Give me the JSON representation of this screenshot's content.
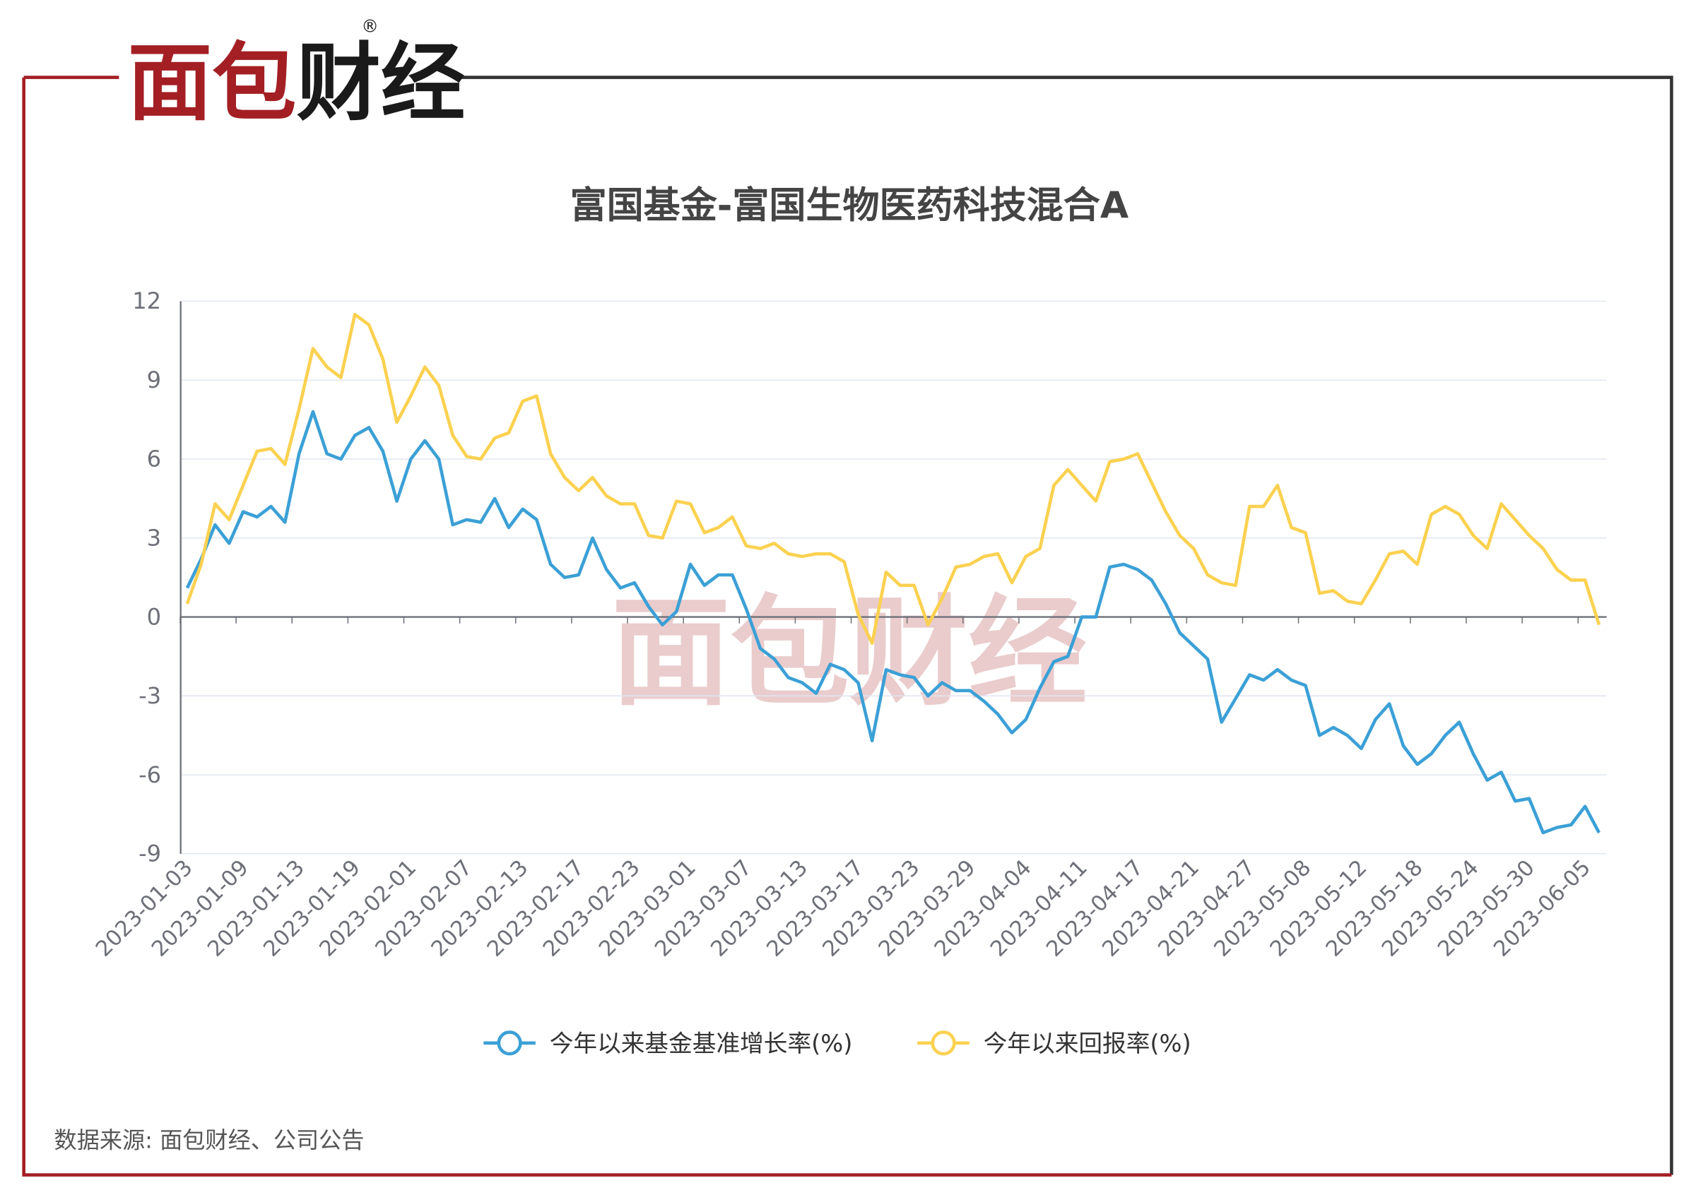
{
  "logo": [
    "面包",
    "财经"
  ],
  "logo_mark": "®",
  "watermark": "面包财经",
  "chart_data": {
    "type": "line",
    "title": "富国基金-富国生物医药科技混合A",
    "categories": [
      "2023-01-03",
      null,
      null,
      null,
      "2023-01-09",
      null,
      null,
      null,
      "2023-01-13",
      null,
      null,
      null,
      "2023-01-19",
      null,
      null,
      null,
      "2023-02-01",
      null,
      null,
      null,
      "2023-02-07",
      null,
      null,
      null,
      "2023-02-13",
      null,
      null,
      null,
      "2023-02-17",
      null,
      null,
      null,
      "2023-02-23",
      null,
      null,
      null,
      "2023-03-01",
      null,
      null,
      null,
      "2023-03-07",
      null,
      null,
      null,
      "2023-03-13",
      null,
      null,
      null,
      "2023-03-17",
      null,
      null,
      null,
      "2023-03-23",
      null,
      null,
      null,
      "2023-03-29",
      null,
      null,
      null,
      "2023-04-04",
      null,
      null,
      null,
      "2023-04-11",
      null,
      null,
      null,
      "2023-04-17",
      null,
      null,
      null,
      "2023-04-21",
      null,
      null,
      null,
      "2023-04-27",
      null,
      null,
      null,
      "2023-05-08",
      null,
      null,
      null,
      "2023-05-12",
      null,
      null,
      null,
      "2023-05-18",
      null,
      null,
      null,
      "2023-05-24",
      null,
      null,
      null,
      "2023-05-30",
      null,
      null,
      null,
      "2023-06-05",
      null
    ],
    "series": [
      {
        "name": "今年以来基金基准增长率(%)",
        "color": "#3ba0d6",
        "values": [
          1.1,
          2.2,
          3.5,
          2.8,
          4.0,
          3.8,
          4.2,
          3.6,
          6.2,
          7.8,
          6.2,
          6.0,
          6.9,
          7.2,
          6.3,
          4.4,
          6.0,
          6.7,
          6.0,
          3.5,
          3.7,
          3.6,
          4.5,
          3.4,
          4.1,
          3.7,
          2.0,
          1.5,
          1.6,
          3.0,
          1.8,
          1.1,
          1.3,
          0.4,
          -0.3,
          0.2,
          2.0,
          1.2,
          1.6,
          1.6,
          0.3,
          -1.2,
          -1.6,
          -2.3,
          -2.5,
          -2.9,
          -1.8,
          -2.0,
          -2.5,
          -4.7,
          -2.0,
          -2.2,
          -2.3,
          -3.0,
          -2.5,
          -2.8,
          -2.8,
          -3.2,
          -3.7,
          -4.4,
          -3.9,
          -2.7,
          -1.7,
          -1.5,
          0.0,
          0.0,
          1.9,
          2.0,
          1.8,
          1.4,
          0.5,
          -0.6,
          -1.1,
          -1.6,
          -4.0,
          -3.1,
          -2.2,
          -2.4,
          -2.0,
          -2.4,
          -2.6,
          -4.5,
          -4.2,
          -4.5,
          -5.0,
          -3.9,
          -3.3,
          -4.9,
          -5.6,
          -5.2,
          -4.5,
          -4.0,
          -5.2,
          -6.2,
          -5.9,
          -7.0,
          -6.9,
          -8.2,
          -8.0,
          -7.9,
          -7.2,
          -8.2
        ]
      },
      {
        "name": "今年以来回报率(%)",
        "color": "#fbd150",
        "values": [
          0.5,
          2.0,
          4.3,
          3.7,
          5.0,
          6.3,
          6.4,
          5.8,
          7.9,
          10.2,
          9.5,
          9.1,
          11.5,
          11.1,
          9.8,
          7.4,
          8.4,
          9.5,
          8.8,
          6.9,
          6.1,
          6.0,
          6.8,
          7.0,
          8.2,
          8.4,
          6.2,
          5.3,
          4.8,
          5.3,
          4.6,
          4.3,
          4.3,
          3.1,
          3.0,
          4.4,
          4.3,
          3.2,
          3.4,
          3.8,
          2.7,
          2.6,
          2.8,
          2.4,
          2.3,
          2.4,
          2.4,
          2.1,
          0.1,
          -1.0,
          1.7,
          1.2,
          1.2,
          -0.3,
          0.7,
          1.9,
          2.0,
          2.3,
          2.4,
          1.3,
          2.3,
          2.6,
          5.0,
          5.6,
          5.0,
          4.4,
          5.9,
          6.0,
          6.2,
          5.1,
          4.0,
          3.1,
          2.6,
          1.6,
          1.3,
          1.2,
          4.2,
          4.2,
          5.0,
          3.4,
          3.2,
          0.9,
          1.0,
          0.6,
          0.5,
          1.4,
          2.4,
          2.5,
          2.0,
          3.9,
          4.2,
          3.9,
          3.1,
          2.6,
          4.3,
          3.7,
          3.1,
          2.6,
          1.8,
          1.4,
          1.4,
          -0.3
        ]
      }
    ],
    "ylim": [
      -9,
      12
    ],
    "yticks": [
      -9,
      -6,
      -3,
      0,
      3,
      6,
      9,
      12
    ],
    "grid": true
  },
  "source": "数据来源: 面包财经、公司公告"
}
